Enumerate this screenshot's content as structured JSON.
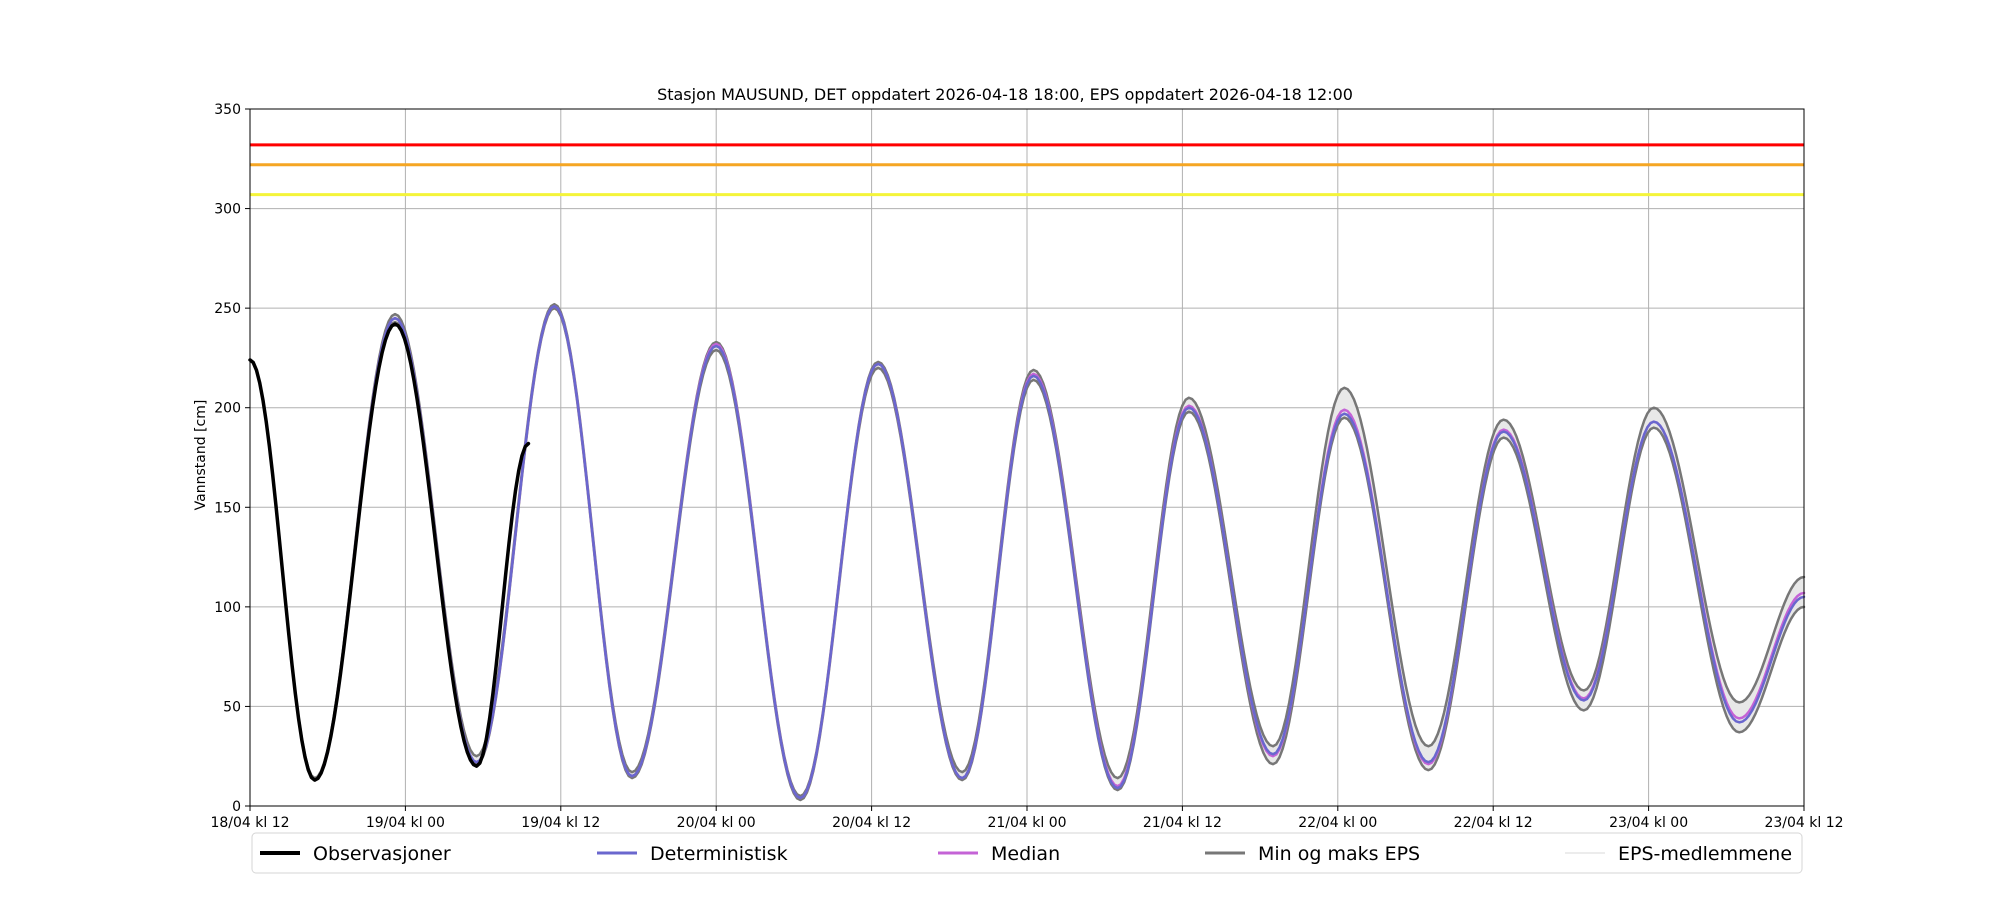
{
  "chart_data": {
    "type": "line",
    "title": "Stasjon MAUSUND, DET oppdatert 2026-04-18 18:00, EPS oppdatert 2026-04-18 12:00",
    "ylabel": "Vannstand [cm]",
    "xlabel": "",
    "x_unit": "hours since 18/04 kl 12",
    "xlim": [
      0,
      120
    ],
    "ylim": [
      0,
      350
    ],
    "grid": true,
    "legend_position": "bottom",
    "x_ticks": [
      {
        "x": 0,
        "label": "18/04 kl 12"
      },
      {
        "x": 12,
        "label": "19/04 kl 00"
      },
      {
        "x": 24,
        "label": "19/04 kl 12"
      },
      {
        "x": 36,
        "label": "20/04 kl 00"
      },
      {
        "x": 48,
        "label": "20/04 kl 12"
      },
      {
        "x": 60,
        "label": "21/04 kl 00"
      },
      {
        "x": 72,
        "label": "21/04 kl 12"
      },
      {
        "x": 84,
        "label": "22/04 kl 00"
      },
      {
        "x": 96,
        "label": "22/04 kl 12"
      },
      {
        "x": 108,
        "label": "23/04 kl 00"
      },
      {
        "x": 120,
        "label": "23/04 kl 12"
      }
    ],
    "y_ticks": [
      0,
      50,
      100,
      150,
      200,
      250,
      300,
      350
    ],
    "threshold_lines": [
      {
        "y": 332,
        "color": "#ff0000"
      },
      {
        "y": 322,
        "color": "#f5a623"
      },
      {
        "y": 307,
        "color": "#f4f43a"
      }
    ],
    "extrema": {
      "deterministic": [
        [
          0,
          224
        ],
        [
          5,
          13
        ],
        [
          11.2,
          245
        ],
        [
          17.5,
          22
        ],
        [
          23.5,
          251
        ],
        [
          29.5,
          15
        ],
        [
          36,
          231
        ],
        [
          42.5,
          4
        ],
        [
          48.5,
          222
        ],
        [
          55,
          14
        ],
        [
          60.5,
          216
        ],
        [
          67,
          9
        ],
        [
          72.5,
          200
        ],
        [
          79,
          26
        ],
        [
          84.5,
          197
        ],
        [
          91,
          22
        ],
        [
          96.8,
          188
        ],
        [
          103,
          53
        ],
        [
          108.4,
          193
        ],
        [
          115,
          42
        ],
        [
          120,
          105
        ]
      ],
      "median": [
        [
          0,
          224
        ],
        [
          5,
          13
        ],
        [
          11.2,
          245
        ],
        [
          17.5,
          22
        ],
        [
          23.5,
          251
        ],
        [
          29.5,
          15
        ],
        [
          36,
          232
        ],
        [
          42.5,
          4
        ],
        [
          48.5,
          222
        ],
        [
          55,
          14
        ],
        [
          60.5,
          217
        ],
        [
          67,
          10
        ],
        [
          72.5,
          201
        ],
        [
          79,
          25
        ],
        [
          84.5,
          199
        ],
        [
          91,
          21
        ],
        [
          96.8,
          189
        ],
        [
          103,
          54
        ],
        [
          108.4,
          193
        ],
        [
          115,
          44
        ],
        [
          120,
          107
        ]
      ],
      "eps_min": [
        [
          0,
          224
        ],
        [
          5,
          13
        ],
        [
          11.2,
          243
        ],
        [
          17.5,
          21
        ],
        [
          23.5,
          250
        ],
        [
          29.5,
          14
        ],
        [
          36,
          229
        ],
        [
          42.5,
          3
        ],
        [
          48.5,
          220
        ],
        [
          55,
          13
        ],
        [
          60.5,
          214
        ],
        [
          67,
          8
        ],
        [
          72.5,
          198
        ],
        [
          79,
          21
        ],
        [
          84.5,
          195
        ],
        [
          91,
          18
        ],
        [
          96.8,
          185
        ],
        [
          103,
          48
        ],
        [
          108.4,
          190
        ],
        [
          115,
          37
        ],
        [
          120,
          100
        ]
      ],
      "eps_max": [
        [
          0,
          224
        ],
        [
          5,
          14
        ],
        [
          11.2,
          247
        ],
        [
          17.5,
          25
        ],
        [
          23.5,
          252
        ],
        [
          29.5,
          17
        ],
        [
          36,
          233
        ],
        [
          42.5,
          5
        ],
        [
          48.5,
          223
        ],
        [
          55,
          17
        ],
        [
          60.5,
          219
        ],
        [
          67,
          14
        ],
        [
          72.5,
          205
        ],
        [
          79,
          30
        ],
        [
          84.5,
          210
        ],
        [
          91,
          30
        ],
        [
          96.8,
          194
        ],
        [
          103,
          58
        ],
        [
          108.4,
          200
        ],
        [
          115,
          52
        ],
        [
          120,
          115
        ]
      ],
      "observations": [
        [
          0,
          224
        ],
        [
          5,
          13
        ],
        [
          11.2,
          242
        ],
        [
          17.5,
          20
        ],
        [
          21.5,
          182
        ]
      ]
    },
    "series": [
      {
        "name": "Observasjoner",
        "color": "#000000",
        "key": "observations"
      },
      {
        "name": "Deterministisk",
        "color": "#6a67ce",
        "key": "deterministic"
      },
      {
        "name": "Median",
        "color": "#c463d6",
        "key": "median"
      },
      {
        "name": "Min og maks EPS",
        "color": "#777777",
        "key": "eps_min_max"
      },
      {
        "name": "EPS-medlemmene",
        "color": "#e6e6e6",
        "key": "eps_members"
      }
    ]
  }
}
